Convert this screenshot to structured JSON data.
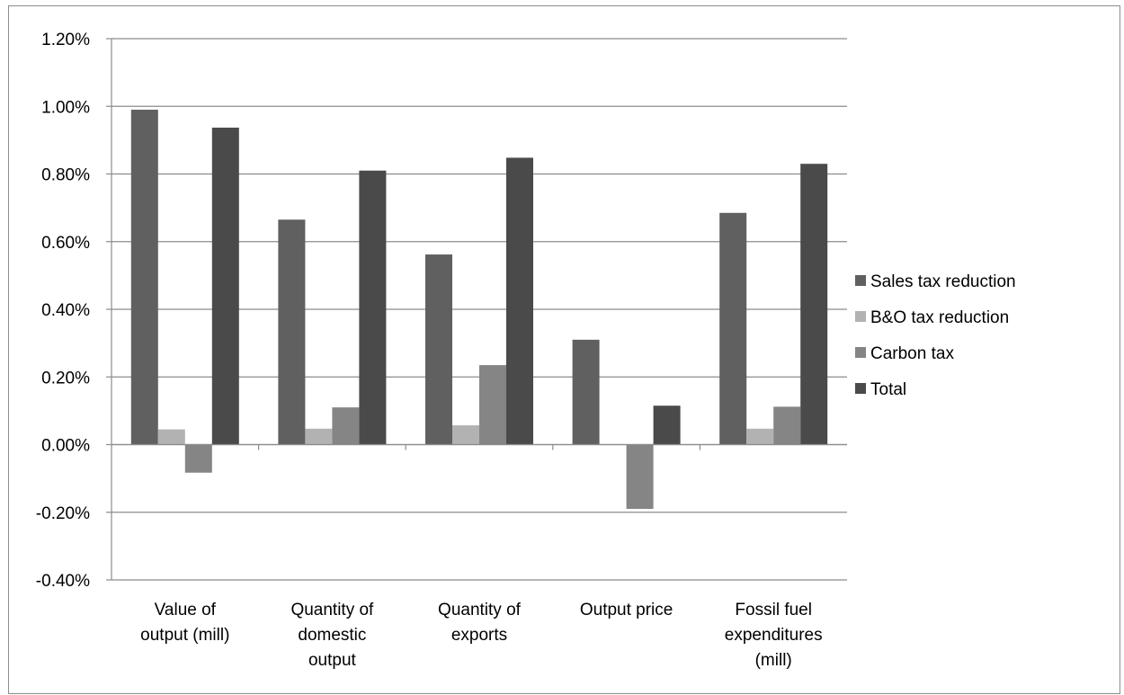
{
  "chart_data": {
    "type": "bar",
    "categories": [
      [
        "Value of",
        "output (mill)"
      ],
      [
        "Quantity of",
        "domestic",
        "output"
      ],
      [
        "Quantity of",
        "exports"
      ],
      [
        "Output price"
      ],
      [
        "Fossil fuel",
        "expenditures",
        "(mill)"
      ]
    ],
    "series": [
      {
        "name": "Sales tax reduction",
        "color": "#606060",
        "values": [
          0.99,
          0.665,
          0.562,
          0.31,
          0.685
        ]
      },
      {
        "name": "B&O tax reduction",
        "color": "#b2b2b2",
        "values": [
          0.045,
          0.047,
          0.057,
          0.0,
          0.047
        ]
      },
      {
        "name": "Carbon tax",
        "color": "#858585",
        "values": [
          -0.083,
          0.11,
          0.235,
          -0.19,
          0.112
        ]
      },
      {
        "name": "Total",
        "color": "#4a4a4a",
        "values": [
          0.937,
          0.81,
          0.848,
          0.115,
          0.83
        ]
      }
    ],
    "ylim": [
      -0.4,
      1.2
    ],
    "y_ticks": [
      "-0.40%",
      "-0.20%",
      "0.00%",
      "0.20%",
      "0.40%",
      "0.60%",
      "0.80%",
      "1.00%",
      "1.20%"
    ],
    "y_unit": "percent",
    "grid": true,
    "legend_position": "right",
    "title": "",
    "xlabel": "",
    "ylabel": ""
  }
}
